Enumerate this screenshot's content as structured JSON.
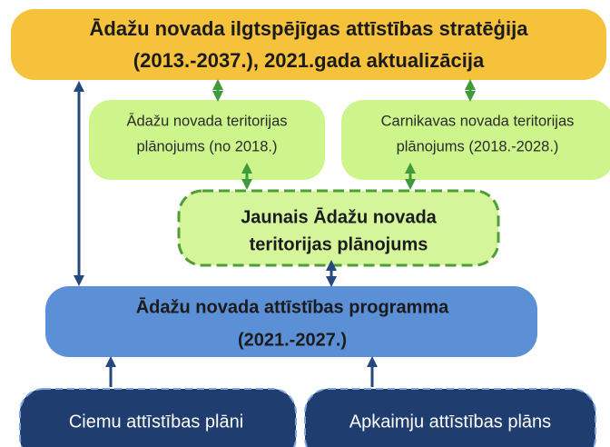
{
  "nodes": [
    {
      "lines": [
        "Ādažu novada ilgtspējīgas attīstības stratēģija",
        "(2013.-2037.), 2021.gada aktualizācija"
      ]
    },
    {
      "lines": [
        "Ādažu novada teritorijas",
        "plānojums (no 2018.)"
      ]
    },
    {
      "lines": [
        "Carnikavas novada teritorijas",
        "plānojums (2018.-2028.)"
      ]
    },
    {
      "lines": [
        "Jaunais Ādažu novada",
        "teritorijas plānojums"
      ]
    },
    {
      "lines": [
        "Ādažu novada attīstības programma",
        "(2021.-2027.)"
      ]
    },
    {
      "lines": [
        "Ciemu attīstības plāni"
      ]
    },
    {
      "lines": [
        "Apkaimju attīstības plāns"
      ]
    }
  ]
}
